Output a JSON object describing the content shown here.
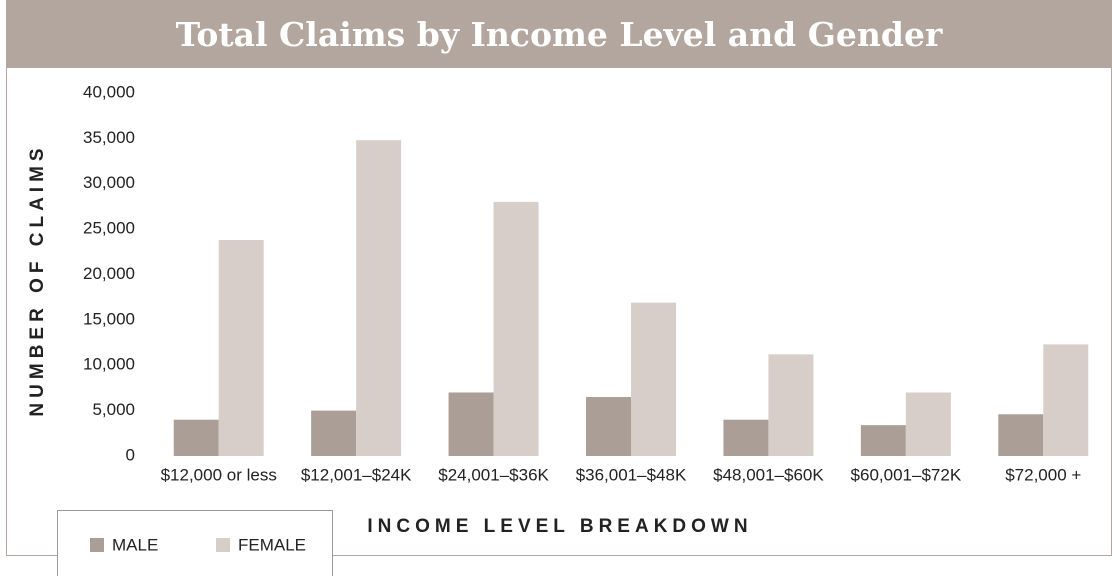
{
  "chart_data": {
    "type": "bar",
    "title": "Total Claims by Income Level and Gender",
    "x_label": "INCOME LEVEL BREAKDOWN",
    "y_label": "NUMBER OF CLAIMS",
    "categories": [
      "$12,000 or less",
      "$12,001–$24K",
      "$24,001–$36K",
      "$36,001–$48K",
      "$48,001–$60K",
      "$60,001–$72K",
      "$72,000 +"
    ],
    "series": [
      {
        "name": "MALE",
        "color": "#ab9e97",
        "values": [
          4000,
          5000,
          7000,
          6500,
          4000,
          3400,
          4600
        ]
      },
      {
        "name": "FEMALE",
        "color": "#d8cec9",
        "values": [
          23800,
          34800,
          28000,
          16900,
          11200,
          7000,
          12300
        ]
      }
    ],
    "ylim": [
      0,
      40000
    ],
    "yticks": [
      0,
      {
        "value": 5000,
        "label": "5,000"
      },
      {
        "value": 10000,
        "label": "10,000"
      },
      {
        "value": 15000,
        "label": "15,000"
      },
      {
        "value": 20000,
        "label": "20,000"
      },
      {
        "value": 25000,
        "label": "25,000"
      },
      {
        "value": 30000,
        "label": "30,000"
      },
      {
        "value": 35000,
        "label": "35,000"
      },
      {
        "value": 40000,
        "label": "40,000"
      }
    ],
    "grid": false,
    "legend": "bottom-left"
  }
}
